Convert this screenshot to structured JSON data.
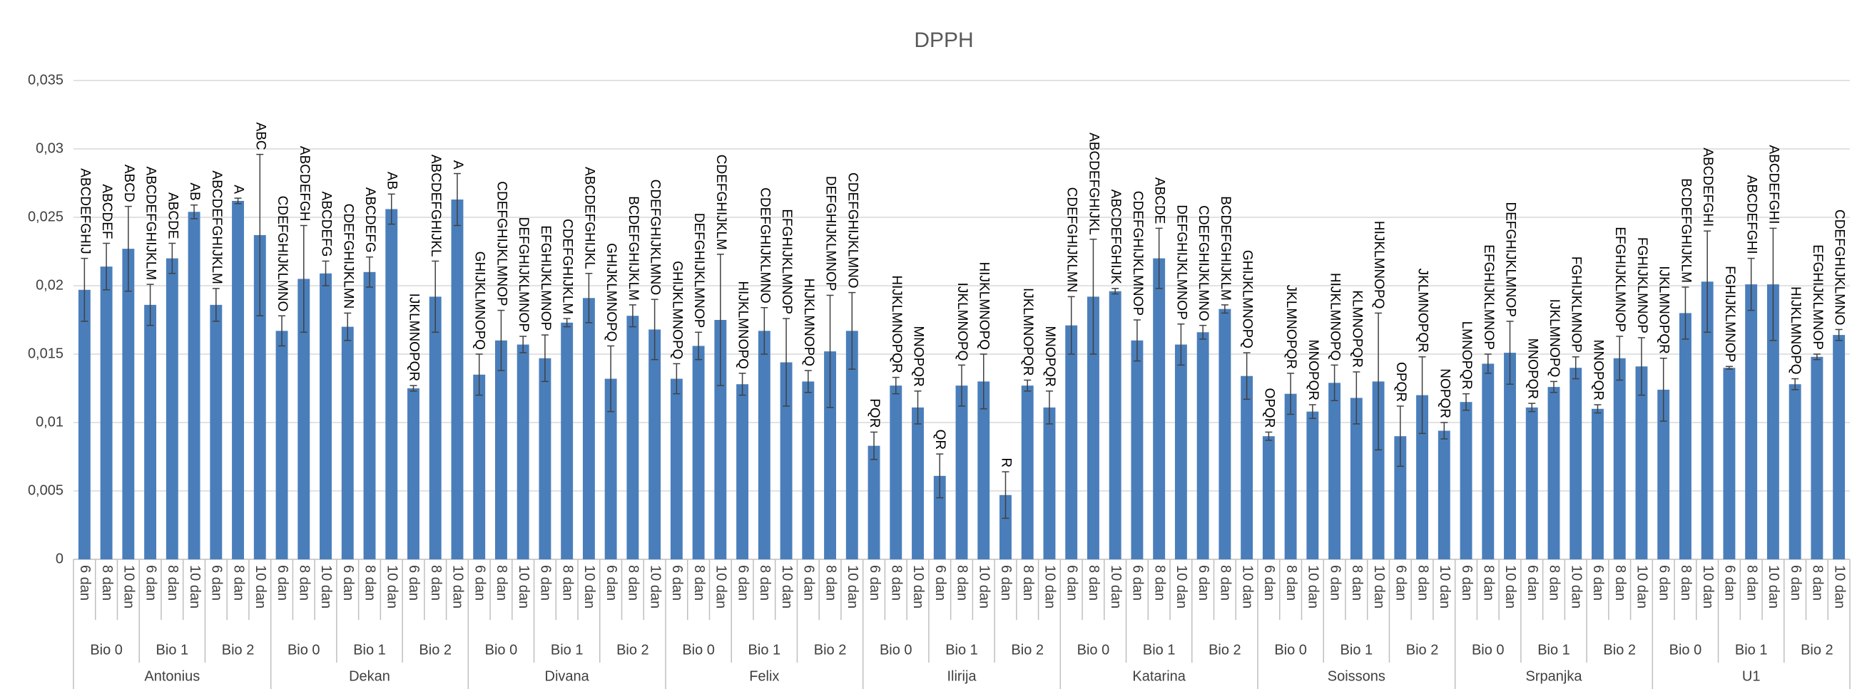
{
  "chart_data": {
    "type": "bar",
    "title": "DPPH",
    "color": "#4a7ebb",
    "grid": true,
    "ylim": [
      0,
      0.035
    ],
    "yticks": [
      0,
      {
        "value": 0.005,
        "label": "0,005"
      },
      {
        "value": 0.01,
        "label": "0,01"
      },
      {
        "value": 0.015,
        "label": "0,015"
      },
      {
        "value": 0.02,
        "label": "0,02"
      },
      {
        "value": 0.025,
        "label": "0,025"
      },
      {
        "value": 0.03,
        "label": "0,03"
      },
      {
        "value": 0.035,
        "label": "0,035"
      }
    ],
    "varieties": [
      "Antonius",
      "Dekan",
      "Divana",
      "Felix",
      "Ilirija",
      "Katarina",
      "Soissons",
      "Srpanjka",
      "U1"
    ],
    "bio_groups": [
      "Bio 0",
      "Bio 1",
      "Bio 2",
      "Bio 0",
      "Bio 1",
      "Bio 2",
      "Bio 0",
      "Bio 1",
      "Bio 2",
      "Bio 0",
      "Bio 1",
      "Bio 2",
      "Bio 0",
      "Bio 1",
      "Bio 2",
      "Bio 0",
      "Bio 1",
      "Bio 2",
      "Bio 0",
      "Bio 1",
      "Bio 2",
      "Bio 0",
      "Bio 1",
      "Bio 2",
      "Bio 0",
      "Bio 1",
      "Bio 2"
    ],
    "categories": [
      "6 dan",
      "8 dan",
      "10 dan",
      "6 dan",
      "8 dan",
      "10 dan",
      "6 dan",
      "8 dan",
      "10 dan",
      "6 dan",
      "8 dan",
      "10 dan",
      "6 dan",
      "8 dan",
      "10 dan",
      "6 dan",
      "8 dan",
      "10 dan",
      "6 dan",
      "8 dan",
      "10 dan",
      "6 dan",
      "8 dan",
      "10 dan",
      "6 dan",
      "8 dan",
      "10 dan",
      "6 dan",
      "8 dan",
      "10 dan",
      "6 dan",
      "8 dan",
      "10 dan",
      "6 dan",
      "8 dan",
      "10 dan",
      "6 dan",
      "8 dan",
      "10 dan",
      "6 dan",
      "8 dan",
      "10 dan",
      "6 dan",
      "8 dan",
      "10 dan",
      "6 dan",
      "8 dan",
      "10 dan",
      "6 dan",
      "8 dan",
      "10 dan",
      "6 dan",
      "8 dan",
      "10 dan",
      "6 dan",
      "8 dan",
      "10 dan",
      "6 dan",
      "8 dan",
      "10 dan",
      "6 dan",
      "8 dan",
      "10 dan",
      "6 dan",
      "8 dan",
      "10 dan",
      "6 dan",
      "8 dan",
      "10 dan",
      "6 dan",
      "8 dan",
      "10 dan",
      "6 dan",
      "8 dan",
      "10 dan",
      "6 dan",
      "8 dan",
      "10 dan",
      "6 dan",
      "8 dan",
      "10 dan"
    ],
    "values": [
      0.0197,
      0.0214,
      0.0227,
      0.0186,
      0.022,
      0.0254,
      0.0186,
      0.0262,
      0.0237,
      0.0167,
      0.0205,
      0.0209,
      0.017,
      0.021,
      0.0256,
      0.0125,
      0.0192,
      0.0263,
      0.0135,
      0.016,
      0.0157,
      0.0147,
      0.0173,
      0.0191,
      0.0132,
      0.0178,
      0.0168,
      0.0132,
      0.0156,
      0.0175,
      0.0128,
      0.0167,
      0.0144,
      0.013,
      0.0152,
      0.0167,
      0.0083,
      0.0127,
      0.0111,
      0.0061,
      0.0127,
      0.013,
      0.0047,
      0.0127,
      0.0111,
      0.0171,
      0.0192,
      0.0196,
      0.016,
      0.022,
      0.0157,
      0.0166,
      0.0183,
      0.0134,
      0.009,
      0.0121,
      0.0108,
      0.0129,
      0.0118,
      0.013,
      0.009,
      0.012,
      0.0094,
      0.0115,
      0.0143,
      0.0151,
      0.0111,
      0.0126,
      0.014,
      0.011,
      0.0147,
      0.0141,
      0.0124,
      0.018,
      0.0203,
      0.014,
      0.0201,
      0.0201,
      0.0128,
      0.0148,
      0.0164
    ],
    "errors": [
      0.0023,
      0.0017,
      0.0031,
      0.0015,
      0.0011,
      0.0005,
      0.0012,
      0.0002,
      0.0059,
      0.0011,
      0.0039,
      0.0009,
      0.001,
      0.0011,
      0.0011,
      0.0002,
      0.0026,
      0.0019,
      0.0015,
      0.0022,
      0.0006,
      0.0017,
      0.0003,
      0.0018,
      0.0024,
      0.0008,
      0.0022,
      0.0011,
      0.001,
      0.0048,
      0.0008,
      0.0017,
      0.0032,
      0.0008,
      0.0041,
      0.0028,
      0.001,
      0.0006,
      0.0012,
      0.0016,
      0.0015,
      0.002,
      0.0017,
      0.0004,
      0.0012,
      0.0021,
      0.0042,
      0.0002,
      0.0015,
      0.0022,
      0.0015,
      0.0005,
      0.0003,
      0.0017,
      0.0003,
      0.0015,
      0.0005,
      0.0013,
      0.0019,
      0.005,
      0.0022,
      0.0028,
      0.0006,
      0.0006,
      0.0007,
      0.0023,
      0.0003,
      0.0004,
      0.0008,
      0.0003,
      0.0016,
      0.0021,
      0.0023,
      0.0019,
      0.0037,
      0.0001,
      0.0019,
      0.0041,
      0.0004,
      0.0002,
      0.0004
    ],
    "annotations": [
      "ABCDEFGHIJ",
      "ABCDEF",
      "ABCD",
      "ABCDEFGHIJKLM",
      "ABCDE",
      "AB",
      "ABCDEFGHIJKLM",
      "A",
      "ABC",
      "CDEFGHIJKLMNO",
      "ABCDEFGH",
      "ABCDEFG",
      "CDEFGHIJKLMN",
      "ABCDEFG",
      "AB",
      "IJKLMNOPQR",
      "ABCDEFGHIJKL",
      "A",
      "GHIJKLMNOPQ",
      "CDEFGHIJKLMNOP",
      "DEFGHIJKLMNOP",
      "EFGHIJKLMNOP",
      "CDEFGHIJKLM",
      "ABCDEFGHIJKL",
      "GHIJKLMNOPQ",
      "BCDEFGHIJKLM",
      "CDEFGHIJKLMNO",
      "GHIJKLMNOPQ",
      "DEFGHIJKLMNOP",
      "CDEFGHIJKLM",
      "HIJKLMNOPQ",
      "CDEFGHIJKLMNO",
      "EFGHIJKLMNOP",
      "HIJKLMNOPQ",
      "DEFGHIJKLMNOP",
      "CDEFGHIJKLMNO",
      "PQR",
      "HIJKLMNOPQR",
      "MNOPQR",
      "QR",
      "IJKLMNOPQ",
      "HIJKLMNOPQ",
      "R",
      "IJKLMNOPQR",
      "MNOPQR",
      "CDEFGHIJKLMN",
      "ABCDEFGHIJKL",
      "ABCDEFGHIJK",
      "CDEFGHIJKLMNOP",
      "ABCDE",
      "DEFGHIJKLMNOP",
      "CDEFGHIJKLMNO",
      "BCDEFGHIJKLM",
      "GHIJKLMNOPQ",
      "OPQR",
      "JKLMNOPQR",
      "MNOPQR",
      "HIJKLMNOPQ",
      "KLMNOPQR",
      "HIJKLMNOPQ",
      "OPQR",
      "JKLMNOPQR",
      "NOPQR",
      "LMNOPQR",
      "EFGHIJKLMNOP",
      "DEFGHIJKLMNOP",
      "MNOPQR",
      "IJKLMNOPQ",
      "FGHIJKLMNOP",
      "MNOPQR",
      "EFGHIJKLMNOP",
      "FGHIJKLMNOP",
      "IJKLMNOPQR",
      "BCDEFGHIJKLM",
      "ABCDEFGHI",
      "FGHIJKLMNOP",
      "ABCDEFGHI",
      "ABCDEFGHI",
      "HIJKLMNOPQ",
      "EFGHIJKLMNOP",
      "CDEFGHIJKLMNO"
    ]
  }
}
